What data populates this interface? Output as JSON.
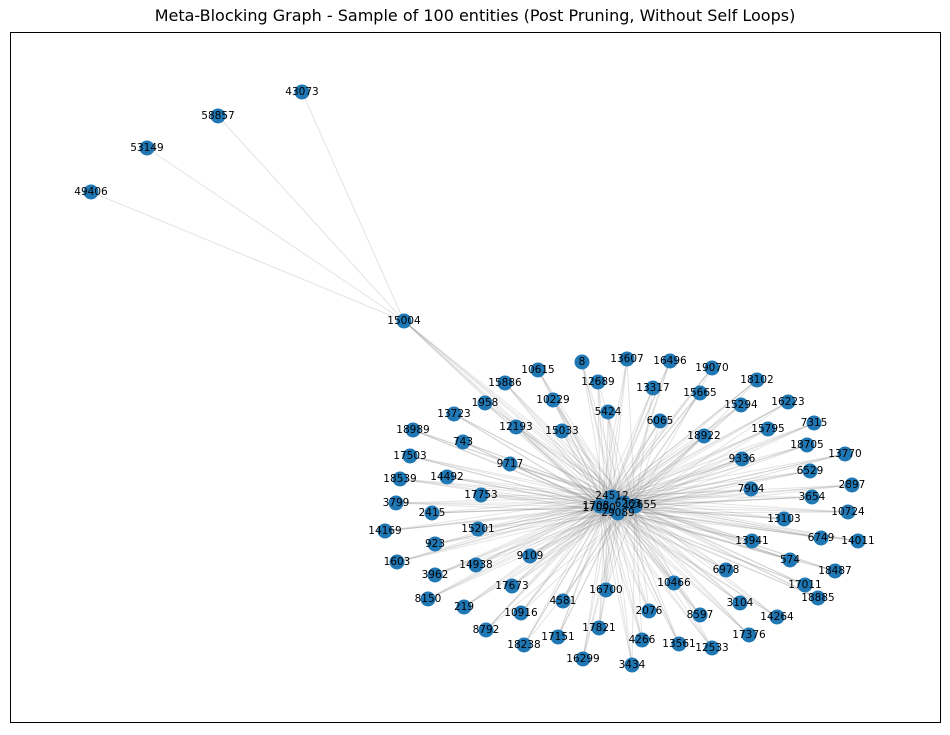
{
  "title": "Meta-Blocking Graph - Sample of 100 entities (Post Pruning, Without Self Loops)",
  "style": {
    "node_color": "#1f77b4",
    "edge_color": "#808080"
  },
  "graph": {
    "hubs": [
      "24512",
      "17090",
      "6263",
      "12655",
      "29089",
      "1708"
    ],
    "outer_nodes": [
      "49406",
      "53149",
      "58857",
      "43073"
    ],
    "bridge": "15004",
    "nodes": [
      "8",
      "13607",
      "16496",
      "19070",
      "10615",
      "12689",
      "15886",
      "13317",
      "15665",
      "18102",
      "10229",
      "1958",
      "5424",
      "16223",
      "13723",
      "6065",
      "15294",
      "12193",
      "7315",
      "15033",
      "18989",
      "743",
      "18922",
      "15795",
      "18705",
      "17503",
      "9717",
      "9336",
      "13770",
      "6529",
      "18539",
      "14492",
      "17753",
      "7904",
      "2897",
      "3654",
      "3799",
      "2415",
      "10724",
      "14169",
      "15201",
      "13103",
      "923",
      "6749",
      "14011",
      "1603",
      "9109",
      "14938",
      "13941",
      "574",
      "18487",
      "3962",
      "17673",
      "6978",
      "8150",
      "16700",
      "10466",
      "17011",
      "4581",
      "18885",
      "219",
      "10916",
      "3104",
      "2076",
      "8597",
      "14264",
      "17376",
      "8792",
      "17821",
      "4266",
      "13561",
      "18238",
      "17151",
      "12533",
      "16299",
      "3434"
    ]
  }
}
